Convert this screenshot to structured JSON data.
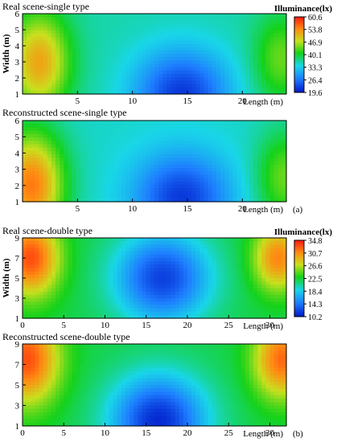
{
  "chart_data": [
    {
      "type": "heatmap",
      "title": "Real scene-single type",
      "xlabel": "Length (m)",
      "ylabel": "Width (m)",
      "xlim": [
        0,
        24
      ],
      "ylim": [
        1,
        6
      ],
      "x_ticks": [
        "5",
        "10",
        "15",
        "20"
      ],
      "y_ticks": [
        "1",
        "2",
        "3",
        "4",
        "5",
        "6"
      ],
      "colorbar_title": "Illuminance(lx)",
      "colorbar_ticks": [
        "60.6",
        "53.8",
        "46.9",
        "40.1",
        "33.3",
        "26.4",
        "19.6"
      ],
      "zlim": [
        19.6,
        60.6
      ],
      "field": {
        "peaks": [
          {
            "x": 1.5,
            "y": 3.0,
            "value": 52,
            "spread": 2.8
          },
          {
            "x": 23.5,
            "y": 3.2,
            "value": 44,
            "spread": 2.5
          }
        ],
        "valley": {
          "x": 14.5,
          "y": 1.0,
          "value": 22
        },
        "base": 36
      }
    },
    {
      "type": "heatmap",
      "title": "Reconstructed scene-single type",
      "xlabel": "Length (m)",
      "panel_tag": "(a)",
      "xlim": [
        0,
        24
      ],
      "ylim": [
        1,
        6
      ],
      "x_ticks": [
        "5",
        "10",
        "15",
        "20"
      ],
      "y_ticks": [
        "1",
        "2",
        "3",
        "4",
        "5",
        "6"
      ],
      "zlim": [
        19.6,
        60.6
      ],
      "field": {
        "peaks": [
          {
            "x": 0.8,
            "y": 2.0,
            "value": 55,
            "spread": 3.0
          },
          {
            "x": 23.8,
            "y": 2.5,
            "value": 44,
            "spread": 2.6
          }
        ],
        "valley": {
          "x": 14.5,
          "y": 1.2,
          "value": 22
        },
        "base": 35
      }
    },
    {
      "type": "heatmap",
      "title": "Real scene-double type",
      "xlabel": "Length (m)",
      "ylabel": "Width (m)",
      "xlim": [
        0,
        32
      ],
      "ylim": [
        1,
        9
      ],
      "x_ticks": [
        "0",
        "5",
        "10",
        "15",
        "20",
        "25",
        "30"
      ],
      "y_ticks": [
        "1",
        "3",
        "5",
        "7",
        "9"
      ],
      "colorbar_title": "Illuminance(lx)",
      "colorbar_ticks": [
        "34.8",
        "30.7",
        "26.6",
        "22.5",
        "18.4",
        "14.3",
        "10.2"
      ],
      "zlim": [
        10.2,
        34.8
      ],
      "field": {
        "peaks": [
          {
            "x": 1.0,
            "y": 7.0,
            "value": 33,
            "spread": 3.5
          },
          {
            "x": 31.0,
            "y": 7.0,
            "value": 31,
            "spread": 3.0
          }
        ],
        "valley": {
          "x": 17.0,
          "y": 5.0,
          "value": 12
        },
        "base": 22
      }
    },
    {
      "type": "heatmap",
      "title": "Reconstructed scene-double type",
      "xlabel": "Length (m)",
      "panel_tag": "(b)",
      "xlim": [
        0,
        32
      ],
      "ylim": [
        1,
        9
      ],
      "x_ticks": [
        "0",
        "5",
        "10",
        "15",
        "20",
        "25",
        "30"
      ],
      "y_ticks": [
        "1",
        "3",
        "5",
        "7",
        "9"
      ],
      "zlim": [
        10.2,
        34.8
      ],
      "field": {
        "peaks": [
          {
            "x": 0.5,
            "y": 7.5,
            "value": 33,
            "spread": 4.0
          },
          {
            "x": 31.5,
            "y": 7.5,
            "value": 32,
            "spread": 3.5
          }
        ],
        "valley": {
          "x": 16.5,
          "y": 1.5,
          "value": 11
        },
        "base": 22
      }
    }
  ]
}
